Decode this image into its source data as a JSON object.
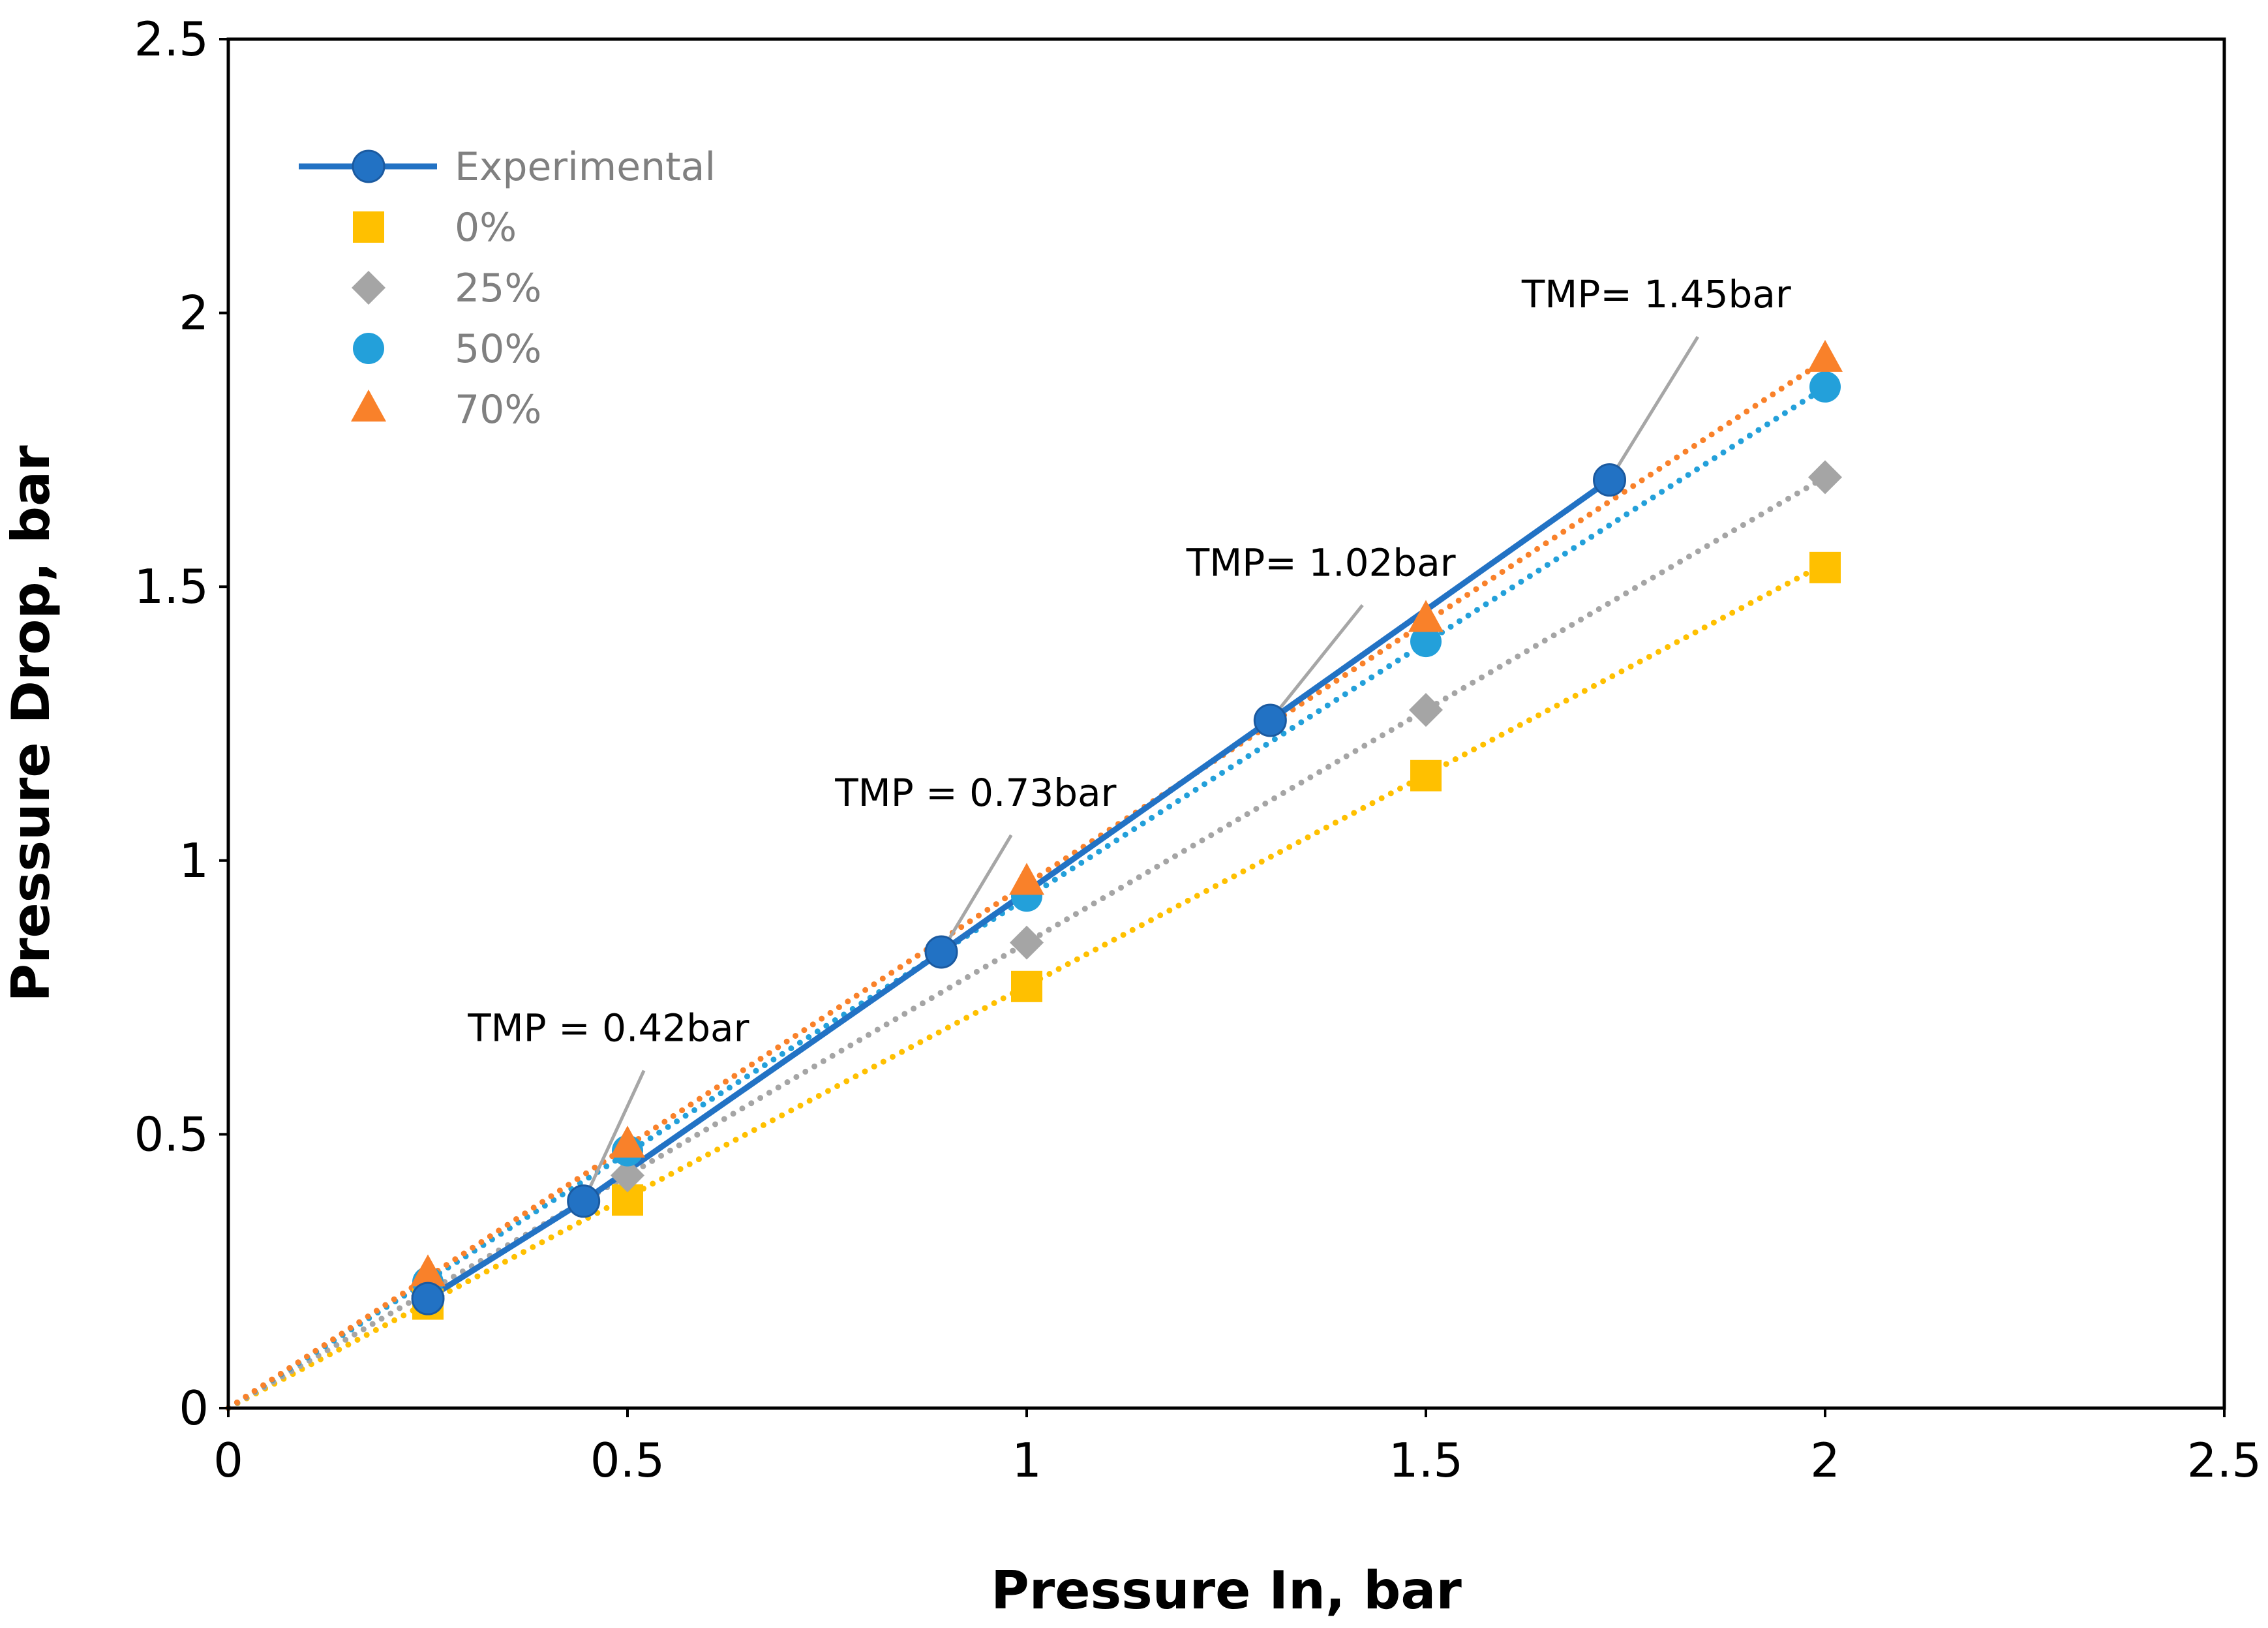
{
  "chart_data": {
    "type": "scatter",
    "title": "",
    "xlabel": "Pressure In, bar",
    "ylabel": "Pressure Drop, bar",
    "xlim": [
      0,
      2.5
    ],
    "ylim": [
      0,
      2.5
    ],
    "xticks": [
      0,
      0.5,
      1,
      1.5,
      2,
      2.5
    ],
    "yticks": [
      0,
      0.5,
      1,
      1.5,
      2,
      2.5
    ],
    "xtick_labels": [
      "0",
      "0.5",
      "1",
      "1.5",
      "2",
      "2.5"
    ],
    "ytick_labels": [
      "0",
      "0.5",
      "1",
      "1.5",
      "2",
      "2.5"
    ],
    "grid": false,
    "legend_position": "top-left",
    "series": [
      {
        "name": "Experimental",
        "kind": "line-marker",
        "marker": "circle",
        "color": "#2272C4",
        "x": [
          0.25,
          0.445,
          0.893,
          1.305,
          1.73
        ],
        "y": [
          0.2,
          0.378,
          0.833,
          1.256,
          1.695
        ]
      },
      {
        "name": "0%",
        "kind": "marker-trend",
        "marker": "square",
        "color": "#FFC000",
        "trend_slope": 0.771,
        "x": [
          0.25,
          0.5,
          1,
          1.5,
          2
        ],
        "y": [
          0.19,
          0.38,
          0.77,
          1.155,
          1.535
        ]
      },
      {
        "name": "25%",
        "kind": "marker-trend",
        "marker": "diamond",
        "color": "#A5A5A5",
        "trend_slope": 0.85,
        "x": [
          0.25,
          0.5,
          1,
          1.5,
          2
        ],
        "y": [
          0.205,
          0.425,
          0.85,
          1.275,
          1.7
        ]
      },
      {
        "name": "50%",
        "kind": "marker-trend",
        "marker": "circle",
        "color": "#23A0DA",
        "trend_slope": 0.932,
        "x": [
          0.25,
          0.5,
          1,
          1.5,
          2
        ],
        "y": [
          0.23,
          0.47,
          0.935,
          1.4,
          1.865
        ]
      },
      {
        "name": "70%",
        "kind": "marker-trend",
        "marker": "triangle",
        "color": "#F9812A",
        "trend_slope": 0.957,
        "x": [
          0.25,
          0.5,
          1,
          1.5,
          2
        ],
        "y": [
          0.245,
          0.48,
          0.96,
          1.44,
          1.915
        ]
      }
    ],
    "annotations": [
      {
        "text": "TMP = 0.42bar",
        "x": 0.3,
        "y": 0.67,
        "target_x": 0.445,
        "target_y": 0.378
      },
      {
        "text": "TMP = 0.73bar",
        "x": 0.76,
        "y": 1.1,
        "target_x": 0.893,
        "target_y": 0.833
      },
      {
        "text": "TMP= 1.02bar",
        "x": 1.2,
        "y": 1.52,
        "target_x": 1.305,
        "target_y": 1.256
      },
      {
        "text": "TMP= 1.45bar",
        "x": 1.62,
        "y": 2.01,
        "target_x": 1.73,
        "target_y": 1.695
      }
    ]
  }
}
